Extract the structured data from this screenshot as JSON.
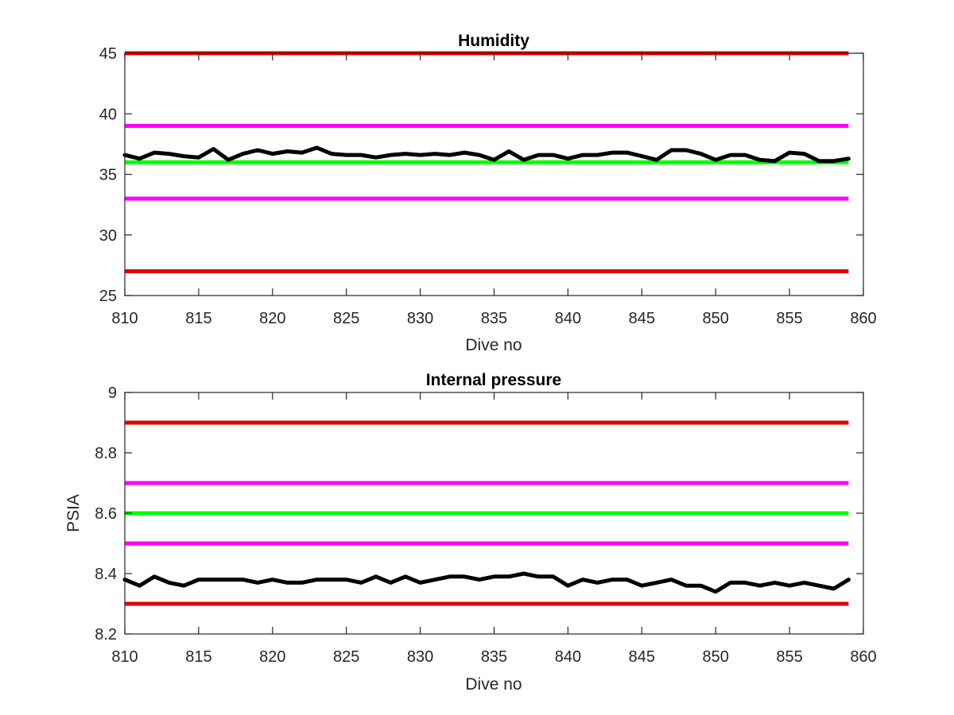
{
  "chart_data": [
    {
      "type": "line",
      "title": "Humidity",
      "xlabel": "Dive no",
      "ylabel": "",
      "xlim": [
        810,
        860
      ],
      "ylim": [
        25,
        45
      ],
      "xticks": [
        810,
        815,
        820,
        825,
        830,
        835,
        840,
        845,
        850,
        855,
        860
      ],
      "yticks": [
        25,
        30,
        35,
        40,
        45
      ],
      "grid": false,
      "box": true,
      "reference_lines": [
        {
          "y": 45,
          "color": "#e00000",
          "x_range": [
            810,
            859
          ]
        },
        {
          "y": 39,
          "color": "#ff00ff",
          "x_range": [
            810,
            859
          ]
        },
        {
          "y": 36,
          "color": "#00ff00",
          "x_range": [
            810,
            859
          ]
        },
        {
          "y": 33,
          "color": "#ff00ff",
          "x_range": [
            810,
            859
          ]
        },
        {
          "y": 27,
          "color": "#e00000",
          "x_range": [
            810,
            859
          ]
        }
      ],
      "series": [
        {
          "color": "#000000",
          "x": [
            810,
            811,
            812,
            813,
            814,
            815,
            816,
            817,
            818,
            819,
            820,
            821,
            822,
            823,
            824,
            825,
            826,
            827,
            828,
            829,
            830,
            831,
            832,
            833,
            834,
            835,
            836,
            837,
            838,
            839,
            840,
            841,
            842,
            843,
            844,
            845,
            846,
            847,
            848,
            849,
            850,
            851,
            852,
            853,
            854,
            855,
            856,
            857,
            858,
            859
          ],
          "values": [
            36.6,
            36.3,
            36.8,
            36.7,
            36.5,
            36.4,
            37.1,
            36.2,
            36.7,
            37.0,
            36.7,
            36.9,
            36.8,
            37.2,
            36.7,
            36.6,
            36.6,
            36.4,
            36.6,
            36.7,
            36.6,
            36.7,
            36.6,
            36.8,
            36.6,
            36.2,
            36.9,
            36.2,
            36.6,
            36.6,
            36.3,
            36.6,
            36.6,
            36.8,
            36.8,
            36.5,
            36.2,
            37.0,
            37.0,
            36.7,
            36.2,
            36.6,
            36.6,
            36.2,
            36.1,
            36.8,
            36.7,
            36.1,
            36.1,
            36.3
          ]
        }
      ]
    },
    {
      "type": "line",
      "title": "Internal pressure",
      "xlabel": "Dive no",
      "ylabel": "PSIA",
      "xlim": [
        810,
        860
      ],
      "ylim": [
        8.2,
        9
      ],
      "xticks": [
        810,
        815,
        820,
        825,
        830,
        835,
        840,
        845,
        850,
        855,
        860
      ],
      "yticks": [
        8.2,
        8.4,
        8.6,
        8.8,
        9
      ],
      "ytick_labels": [
        "8.2",
        "8.4",
        "8.6",
        "8.8",
        "9"
      ],
      "grid": false,
      "box": true,
      "reference_lines": [
        {
          "y": 8.9,
          "color": "#e00000",
          "x_range": [
            810,
            859
          ]
        },
        {
          "y": 8.7,
          "color": "#ff00ff",
          "x_range": [
            810,
            859
          ]
        },
        {
          "y": 8.6,
          "color": "#00ff00",
          "x_range": [
            810,
            859
          ]
        },
        {
          "y": 8.5,
          "color": "#ff00ff",
          "x_range": [
            810,
            859
          ]
        },
        {
          "y": 8.3,
          "color": "#e00000",
          "x_range": [
            810,
            859
          ]
        }
      ],
      "series": [
        {
          "color": "#000000",
          "x": [
            810,
            811,
            812,
            813,
            814,
            815,
            816,
            817,
            818,
            819,
            820,
            821,
            822,
            823,
            824,
            825,
            826,
            827,
            828,
            829,
            830,
            831,
            832,
            833,
            834,
            835,
            836,
            837,
            838,
            839,
            840,
            841,
            842,
            843,
            844,
            845,
            846,
            847,
            848,
            849,
            850,
            851,
            852,
            853,
            854,
            855,
            856,
            857,
            858,
            859
          ],
          "values": [
            8.38,
            8.36,
            8.39,
            8.37,
            8.36,
            8.38,
            8.38,
            8.38,
            8.38,
            8.37,
            8.38,
            8.37,
            8.37,
            8.38,
            8.38,
            8.38,
            8.37,
            8.39,
            8.37,
            8.39,
            8.37,
            8.38,
            8.39,
            8.39,
            8.38,
            8.39,
            8.39,
            8.4,
            8.39,
            8.39,
            8.36,
            8.38,
            8.37,
            8.38,
            8.38,
            8.36,
            8.37,
            8.38,
            8.36,
            8.36,
            8.34,
            8.37,
            8.37,
            8.36,
            8.37,
            8.36,
            8.37,
            8.36,
            8.35,
            8.38
          ]
        }
      ]
    }
  ]
}
